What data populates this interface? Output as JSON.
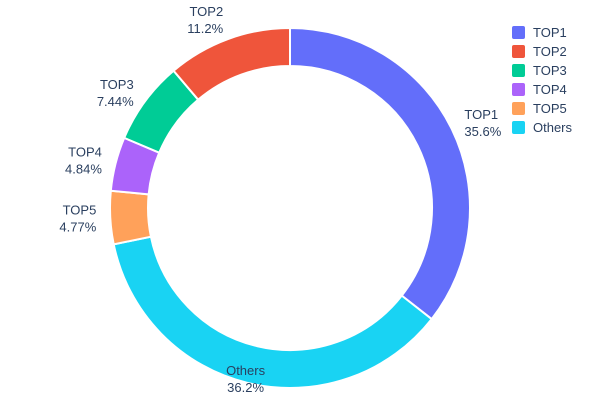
{
  "chart_data": {
    "type": "pie",
    "title": "",
    "labels": [
      "TOP1",
      "TOP2",
      "TOP3",
      "TOP4",
      "TOP5",
      "Others"
    ],
    "values": [
      35.6,
      11.2,
      7.44,
      4.84,
      4.77,
      36.2
    ],
    "percent_labels": [
      "35.6%",
      "11.2%",
      "7.44%",
      "4.84%",
      "4.77%",
      "36.2%"
    ],
    "colors": [
      "#636EFA",
      "#EF553B",
      "#00CC96",
      "#AB63FA",
      "#FFA15A",
      "#19D3F3"
    ],
    "hole_ratio": 0.79,
    "direction": "clockwise",
    "start_angle_deg": 0,
    "clockwise_order": [
      "TOP1",
      "Others",
      "TOP5",
      "TOP4",
      "TOP3",
      "TOP2"
    ],
    "legend": {
      "position": "top-right",
      "entries": [
        "TOP1",
        "TOP2",
        "TOP3",
        "TOP4",
        "TOP5",
        "Others"
      ]
    },
    "text_color": "#2a3f5f",
    "background_color": "#ffffff"
  }
}
